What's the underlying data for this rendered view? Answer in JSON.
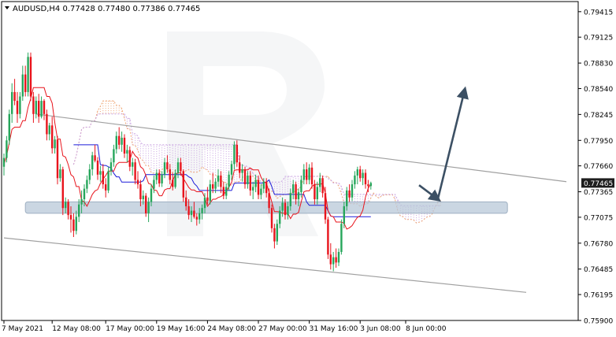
{
  "chart_data": {
    "type": "candlestick",
    "title": "AUDUSD,H4  0.77428  0.77480  0.77386  0.77465",
    "symbol": "AUDUSD,H4",
    "ohlc_header": [
      "0.77428",
      "0.77480",
      "0.77386",
      "0.77465"
    ],
    "current_price_label": "0.77465",
    "ylim": [
      0.759,
      0.7953
    ],
    "y_ticks": [
      "0.79415",
      "0.79125",
      "0.78830",
      "0.78540",
      "0.78245",
      "0.77950",
      "0.77660",
      "0.77365",
      "0.77075",
      "0.76780",
      "0.76485",
      "0.76195",
      "0.75900"
    ],
    "x_ticks": [
      "7 May 2021",
      "12 May 08:00",
      "17 May 00:00",
      "19 May 16:00",
      "24 May 08:00",
      "27 May 00:00",
      "31 May 16:00",
      "3 Jun 08:00",
      "8 Jun 00:00"
    ],
    "colors": {
      "bull": "#26a65b",
      "bear": "#e8141c",
      "tenkan": "#e8141c",
      "kijun": "#1c1cd9",
      "cloud_bull": "#f0a878",
      "cloud_bear": "#c8a0e0",
      "channel": "#a0a0a0",
      "support_zone": "#b8c8d8",
      "arrow": "#3c5064",
      "price_label_bg": "#1e1e1e"
    },
    "candles": [
      [
        0.7765,
        0.778,
        0.7755,
        0.7775
      ],
      [
        0.7775,
        0.78,
        0.777,
        0.7795
      ],
      [
        0.7795,
        0.783,
        0.779,
        0.7825
      ],
      [
        0.7825,
        0.786,
        0.7815,
        0.785
      ],
      [
        0.785,
        0.7865,
        0.7835,
        0.784
      ],
      [
        0.784,
        0.785,
        0.7815,
        0.7825
      ],
      [
        0.7825,
        0.785,
        0.782,
        0.7845
      ],
      [
        0.7845,
        0.788,
        0.784,
        0.787
      ],
      [
        0.787,
        0.788,
        0.7845,
        0.785
      ],
      [
        0.785,
        0.7895,
        0.7845,
        0.789
      ],
      [
        0.789,
        0.7895,
        0.784,
        0.7845
      ],
      [
        0.7845,
        0.785,
        0.7815,
        0.7825
      ],
      [
        0.7825,
        0.7845,
        0.782,
        0.784
      ],
      [
        0.784,
        0.7848,
        0.7815,
        0.7822
      ],
      [
        0.7822,
        0.7845,
        0.782,
        0.784
      ],
      [
        0.784,
        0.7842,
        0.7818,
        0.7825
      ],
      [
        0.7825,
        0.783,
        0.7795,
        0.7802
      ],
      [
        0.7802,
        0.7815,
        0.7795,
        0.7812
      ],
      [
        0.7812,
        0.7822,
        0.778,
        0.7786
      ],
      [
        0.7786,
        0.78,
        0.778,
        0.7796
      ],
      [
        0.7796,
        0.78,
        0.7745,
        0.7752
      ],
      [
        0.7752,
        0.7768,
        0.7748,
        0.7762
      ],
      [
        0.7762,
        0.7765,
        0.771,
        0.7718
      ],
      [
        0.7718,
        0.773,
        0.7712,
        0.7725
      ],
      [
        0.7725,
        0.7728,
        0.7705,
        0.771
      ],
      [
        0.771,
        0.772,
        0.769,
        0.7705
      ],
      [
        0.7705,
        0.7712,
        0.7685,
        0.7692
      ],
      [
        0.7692,
        0.7715,
        0.7688,
        0.7708
      ],
      [
        0.7708,
        0.7728,
        0.7702,
        0.7722
      ],
      [
        0.7722,
        0.7738,
        0.7712,
        0.7728
      ],
      [
        0.7728,
        0.7745,
        0.772,
        0.774
      ],
      [
        0.774,
        0.7755,
        0.7735,
        0.775
      ],
      [
        0.775,
        0.7768,
        0.7745,
        0.7762
      ],
      [
        0.7762,
        0.7782,
        0.7755,
        0.7778
      ],
      [
        0.7778,
        0.779,
        0.777,
        0.7772
      ],
      [
        0.7772,
        0.7776,
        0.775,
        0.7756
      ],
      [
        0.7756,
        0.7766,
        0.7748,
        0.776
      ],
      [
        0.776,
        0.7768,
        0.774,
        0.7745
      ],
      [
        0.7745,
        0.7752,
        0.773,
        0.7738
      ],
      [
        0.7738,
        0.7765,
        0.7735,
        0.776
      ],
      [
        0.776,
        0.7775,
        0.7755,
        0.777
      ],
      [
        0.777,
        0.779,
        0.7765,
        0.7785
      ],
      [
        0.7785,
        0.7805,
        0.778,
        0.78
      ],
      [
        0.78,
        0.781,
        0.7785,
        0.779
      ],
      [
        0.779,
        0.7805,
        0.7782,
        0.7798
      ],
      [
        0.7798,
        0.7802,
        0.7775,
        0.778
      ],
      [
        0.778,
        0.779,
        0.777,
        0.7784
      ],
      [
        0.7784,
        0.7788,
        0.776,
        0.7765
      ],
      [
        0.7765,
        0.7775,
        0.7755,
        0.777
      ],
      [
        0.777,
        0.7774,
        0.7745,
        0.775
      ],
      [
        0.775,
        0.776,
        0.774,
        0.7745
      ],
      [
        0.7745,
        0.775,
        0.772,
        0.7728
      ],
      [
        0.7728,
        0.7738,
        0.7722,
        0.7732
      ],
      [
        0.7732,
        0.7735,
        0.7708,
        0.7712
      ],
      [
        0.7712,
        0.773,
        0.7702,
        0.7725
      ],
      [
        0.7725,
        0.7745,
        0.772,
        0.774
      ],
      [
        0.774,
        0.7755,
        0.7735,
        0.775
      ],
      [
        0.775,
        0.7762,
        0.7745,
        0.7758
      ],
      [
        0.7758,
        0.7762,
        0.7742,
        0.7746
      ],
      [
        0.7746,
        0.776,
        0.7742,
        0.7756
      ],
      [
        0.7756,
        0.7775,
        0.7752,
        0.777
      ],
      [
        0.777,
        0.7778,
        0.7758,
        0.7762
      ],
      [
        0.7762,
        0.7768,
        0.7745,
        0.775
      ],
      [
        0.775,
        0.7758,
        0.7738,
        0.7742
      ],
      [
        0.7742,
        0.7762,
        0.774,
        0.7758
      ],
      [
        0.7758,
        0.7775,
        0.7752,
        0.777
      ],
      [
        0.777,
        0.7775,
        0.7755,
        0.776
      ],
      [
        0.776,
        0.7762,
        0.7725,
        0.773
      ],
      [
        0.773,
        0.7738,
        0.7715,
        0.772
      ],
      [
        0.772,
        0.7728,
        0.7705,
        0.771
      ],
      [
        0.771,
        0.772,
        0.7702,
        0.7715
      ],
      [
        0.7715,
        0.7725,
        0.7706,
        0.7708
      ],
      [
        0.7708,
        0.7712,
        0.7698,
        0.7705
      ],
      [
        0.7705,
        0.7718,
        0.77,
        0.7712
      ],
      [
        0.7712,
        0.7722,
        0.7705,
        0.7718
      ],
      [
        0.7718,
        0.7735,
        0.7712,
        0.773
      ],
      [
        0.773,
        0.7742,
        0.7722,
        0.7726
      ],
      [
        0.7726,
        0.775,
        0.7722,
        0.7745
      ],
      [
        0.7745,
        0.7758,
        0.7735,
        0.774
      ],
      [
        0.774,
        0.7752,
        0.7735,
        0.7748
      ],
      [
        0.7748,
        0.7762,
        0.7742,
        0.7755
      ],
      [
        0.7755,
        0.776,
        0.7735,
        0.7742
      ],
      [
        0.7742,
        0.7748,
        0.7728,
        0.7732
      ],
      [
        0.7732,
        0.7746,
        0.7728,
        0.7742
      ],
      [
        0.7742,
        0.776,
        0.7738,
        0.7756
      ],
      [
        0.7756,
        0.7772,
        0.775,
        0.7768
      ],
      [
        0.7768,
        0.7794,
        0.7762,
        0.779
      ],
      [
        0.779,
        0.7795,
        0.7765,
        0.777
      ],
      [
        0.777,
        0.7778,
        0.7752,
        0.7758
      ],
      [
        0.7758,
        0.7768,
        0.7748,
        0.7762
      ],
      [
        0.7762,
        0.7765,
        0.774,
        0.7745
      ],
      [
        0.7745,
        0.776,
        0.774,
        0.7755
      ],
      [
        0.7755,
        0.776,
        0.7732,
        0.7738
      ],
      [
        0.7738,
        0.7748,
        0.7728,
        0.7742
      ],
      [
        0.7742,
        0.7756,
        0.7736,
        0.775
      ],
      [
        0.775,
        0.7755,
        0.7728,
        0.7733
      ],
      [
        0.7733,
        0.7745,
        0.7728,
        0.774
      ],
      [
        0.774,
        0.7752,
        0.7735,
        0.7748
      ],
      [
        0.7748,
        0.7752,
        0.773,
        0.7735
      ],
      [
        0.7735,
        0.774,
        0.7712,
        0.7718
      ],
      [
        0.7718,
        0.7722,
        0.769,
        0.7695
      ],
      [
        0.7695,
        0.77,
        0.7672,
        0.768
      ],
      [
        0.768,
        0.7705,
        0.7676,
        0.77
      ],
      [
        0.77,
        0.772,
        0.7695,
        0.7715
      ],
      [
        0.7715,
        0.773,
        0.7708,
        0.7724
      ],
      [
        0.7724,
        0.7728,
        0.7705,
        0.771
      ],
      [
        0.771,
        0.7725,
        0.7705,
        0.772
      ],
      [
        0.772,
        0.774,
        0.7715,
        0.7735
      ],
      [
        0.7735,
        0.775,
        0.7728,
        0.7745
      ],
      [
        0.7745,
        0.7748,
        0.7722,
        0.7728
      ],
      [
        0.7728,
        0.774,
        0.772,
        0.7736
      ],
      [
        0.7736,
        0.7755,
        0.773,
        0.775
      ],
      [
        0.775,
        0.7768,
        0.7745,
        0.7762
      ],
      [
        0.7762,
        0.777,
        0.7745,
        0.775
      ],
      [
        0.775,
        0.7768,
        0.7745,
        0.7764
      ],
      [
        0.7764,
        0.777,
        0.774,
        0.7745
      ],
      [
        0.7745,
        0.775,
        0.7722,
        0.7728
      ],
      [
        0.7728,
        0.7748,
        0.7722,
        0.7742
      ],
      [
        0.7742,
        0.7758,
        0.7736,
        0.7752
      ],
      [
        0.7752,
        0.7755,
        0.773,
        0.7735
      ],
      [
        0.7735,
        0.7742,
        0.77,
        0.7705
      ],
      [
        0.7705,
        0.7708,
        0.766,
        0.7665
      ],
      [
        0.7665,
        0.7678,
        0.7648,
        0.7654
      ],
      [
        0.7654,
        0.7668,
        0.7646,
        0.7662
      ],
      [
        0.7662,
        0.7672,
        0.765,
        0.7656
      ],
      [
        0.7656,
        0.7672,
        0.7652,
        0.7668
      ],
      [
        0.7668,
        0.7705,
        0.7665,
        0.77
      ],
      [
        0.77,
        0.7725,
        0.7695,
        0.772
      ],
      [
        0.772,
        0.7742,
        0.7715,
        0.7738
      ],
      [
        0.7738,
        0.7745,
        0.7725,
        0.773
      ],
      [
        0.773,
        0.775,
        0.7726,
        0.7745
      ],
      [
        0.7745,
        0.776,
        0.774,
        0.7755
      ],
      [
        0.7755,
        0.7765,
        0.7745,
        0.7762
      ],
      [
        0.7762,
        0.7766,
        0.7748,
        0.7752
      ],
      [
        0.7752,
        0.7762,
        0.7744,
        0.7758
      ],
      [
        0.7758,
        0.7762,
        0.774,
        0.7745
      ],
      [
        0.7745,
        0.775,
        0.7736,
        0.7743
      ],
      [
        0.7743,
        0.7748,
        0.7739,
        0.77465
      ]
    ],
    "channel_upper": [
      [
        12,
        0.7825
      ],
      [
        210,
        0.7748
      ]
    ],
    "channel_lower": [
      [
        0,
        0.7684
      ],
      [
        195,
        0.7622
      ]
    ],
    "support_zone": {
      "x": [
        8,
        188
      ],
      "y": [
        0.7712,
        0.7725
      ]
    },
    "forecast_arrows": [
      {
        "from": [
          155,
          0.7744
        ],
        "to": [
          162,
          0.7728
        ]
      },
      {
        "from": [
          162,
          0.7728
        ],
        "to": [
          172,
          0.7852
        ]
      }
    ],
    "x_tick_candles": [
      0,
      18,
      38,
      57,
      76,
      95,
      114,
      133,
      150
    ],
    "last_close_y": 0.77465
  }
}
